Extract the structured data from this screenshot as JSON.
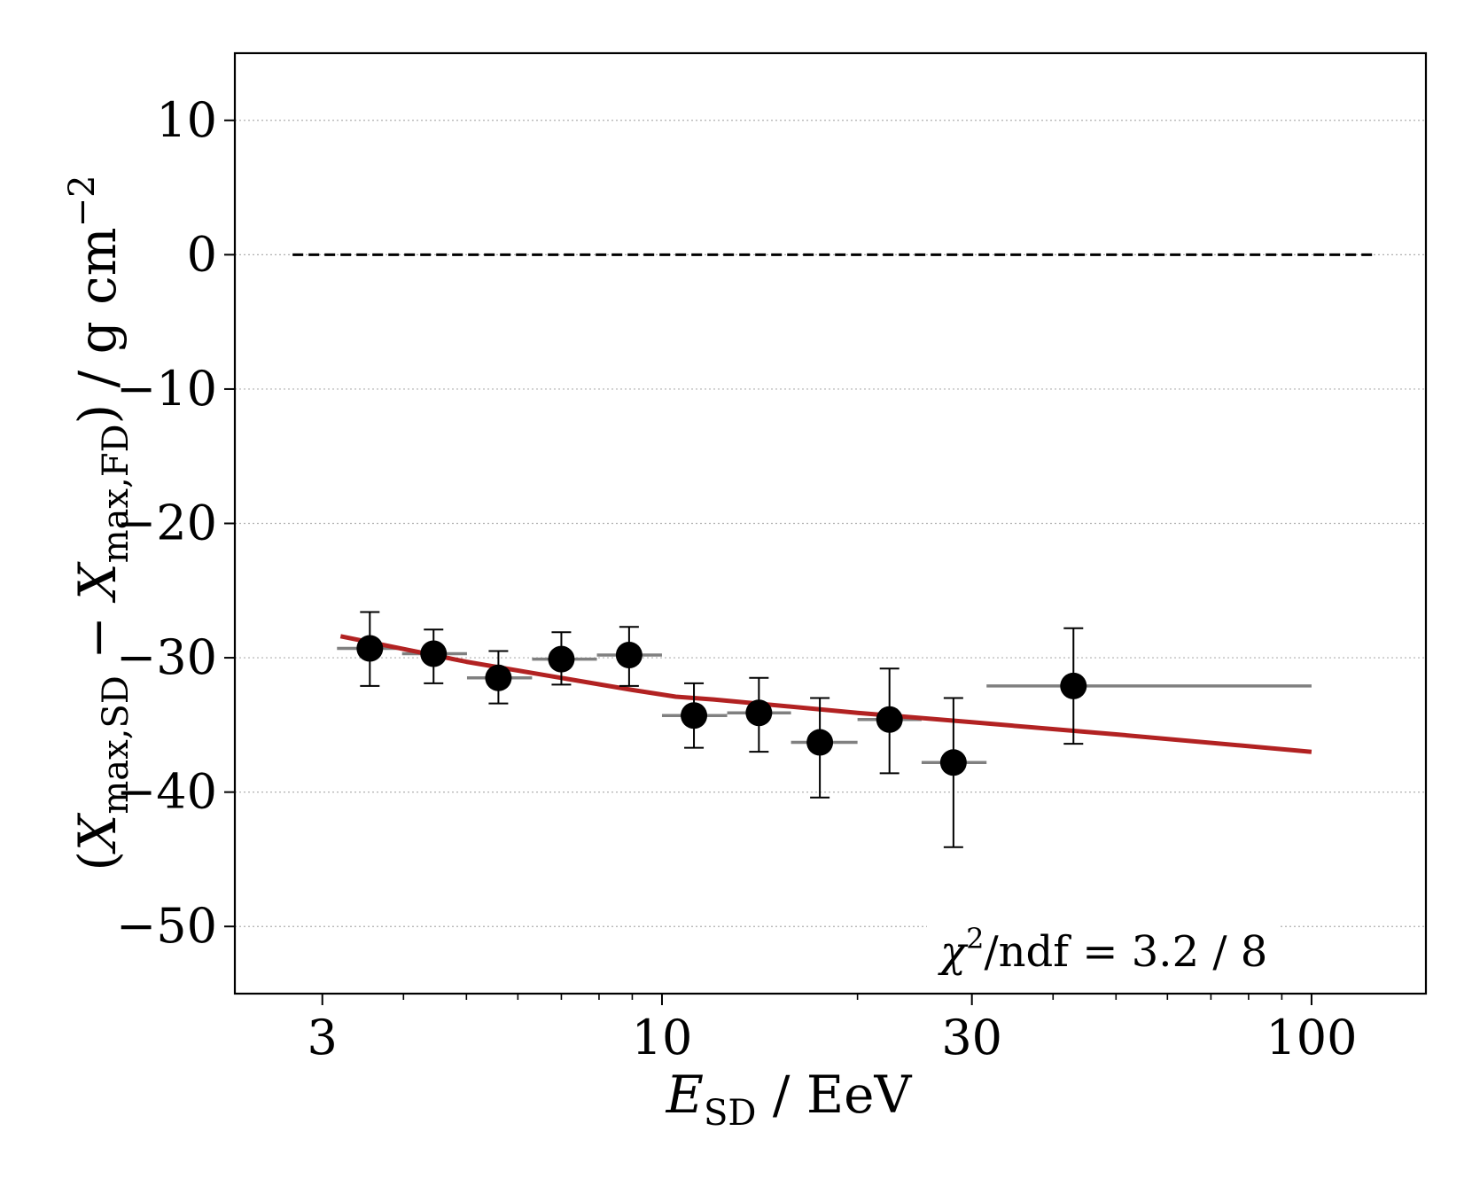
{
  "chart_data": {
    "type": "scatter",
    "xscale": "log",
    "xlim": [
      2.2,
      150
    ],
    "ylim": [
      -55,
      15
    ],
    "grid": "horizontal-dotted",
    "x_ticks": [
      3,
      10,
      30,
      100
    ],
    "x_tick_labels": [
      "3",
      "10",
      "30",
      "100"
    ],
    "y_ticks": [
      10,
      0,
      -10,
      -20,
      -30,
      -40,
      -50
    ],
    "y_tick_labels": [
      "10",
      "0",
      "−10",
      "−20",
      "−30",
      "−40",
      "−50"
    ],
    "xlabel": {
      "main": "E",
      "sub": "SD",
      "rest": " / EeV"
    },
    "ylabel": {
      "open": "(",
      "x1": "X",
      "sub1": "max,SD",
      "minus": " − ",
      "x2": "X",
      "sub2": "max,FD",
      "close": ") / g cm",
      "sup": "−2"
    },
    "annotation": {
      "chi": "χ",
      "sup": "2",
      "rest": "/ndf  =  3.2 / 8"
    },
    "colors": {
      "points": "#000000",
      "bins": "#808080",
      "fit": "#b22222",
      "reference": "#000000"
    },
    "reference_line": {
      "y": 0,
      "x_range": [
        2.7,
        125
      ],
      "style": "dashed"
    },
    "points": [
      {
        "x": 3.55,
        "y": -29.3,
        "x_low": 3.16,
        "x_high": 3.98,
        "y_low": -32.1,
        "y_high": -26.6
      },
      {
        "x": 4.45,
        "y": -29.7,
        "x_low": 3.98,
        "x_high": 5.01,
        "y_low": -31.9,
        "y_high": -27.9
      },
      {
        "x": 5.6,
        "y": -31.5,
        "x_low": 5.01,
        "x_high": 6.31,
        "y_low": -33.4,
        "y_high": -29.5
      },
      {
        "x": 7.0,
        "y": -30.1,
        "x_low": 6.31,
        "x_high": 7.94,
        "y_low": -32.0,
        "y_high": -28.1
      },
      {
        "x": 8.9,
        "y": -29.8,
        "x_low": 7.94,
        "x_high": 10.0,
        "y_low": -32.1,
        "y_high": -27.7
      },
      {
        "x": 11.2,
        "y": -34.3,
        "x_low": 10.0,
        "x_high": 12.6,
        "y_low": -36.7,
        "y_high": -31.9
      },
      {
        "x": 14.1,
        "y": -34.1,
        "x_low": 12.6,
        "x_high": 15.8,
        "y_low": -37.0,
        "y_high": -31.5
      },
      {
        "x": 17.5,
        "y": -36.3,
        "x_low": 15.8,
        "x_high": 20.0,
        "y_low": -40.4,
        "y_high": -33.0
      },
      {
        "x": 22.4,
        "y": -34.6,
        "x_low": 20.0,
        "x_high": 25.1,
        "y_low": -38.6,
        "y_high": -30.8
      },
      {
        "x": 28.1,
        "y": -37.8,
        "x_low": 25.1,
        "x_high": 31.6,
        "y_low": -44.1,
        "y_high": -33.0
      },
      {
        "x": 43.0,
        "y": -32.1,
        "x_low": 31.6,
        "x_high": 100.0,
        "y_low": -36.4,
        "y_high": -27.8
      }
    ],
    "fit_curve": {
      "x": [
        3.2,
        5.0,
        7.0,
        9.0,
        10.5,
        12.0,
        20.0,
        30.0,
        50.0,
        100.0
      ],
      "y": [
        -28.4,
        -30.3,
        -31.5,
        -32.4,
        -32.9,
        -33.1,
        -34.1,
        -34.8,
        -35.7,
        -37.0
      ]
    }
  }
}
